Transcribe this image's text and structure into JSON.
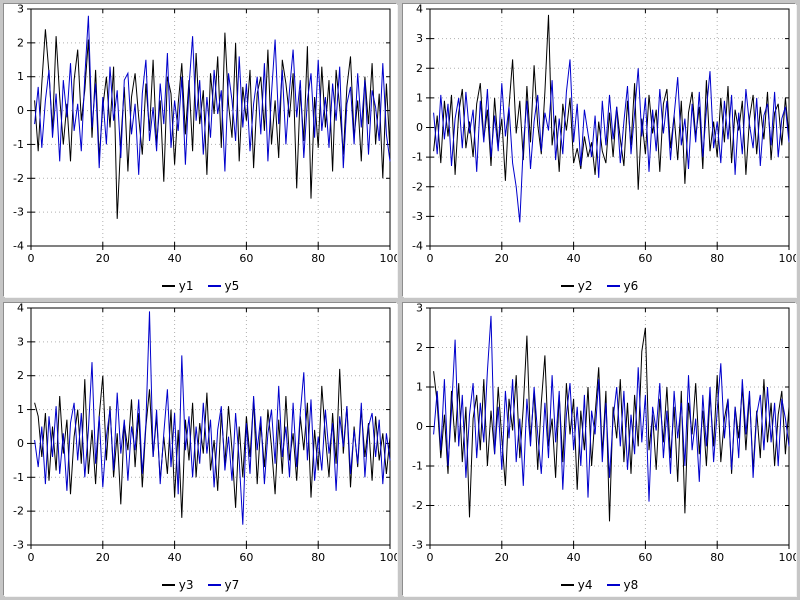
{
  "colors": {
    "series_black": "#000000",
    "series_blue": "#0000cc",
    "grid": "#b0b0b0",
    "frame": "#c6c6c6",
    "plot_bg": "#ffffff"
  },
  "chart_data": [
    {
      "type": "line",
      "title": "",
      "xlabel": "",
      "ylabel": "",
      "grid": true,
      "legend_position": "bottom",
      "xlim": [
        0,
        100
      ],
      "ylim": [
        -4,
        3
      ],
      "x_ticks": [
        0,
        20,
        40,
        60,
        80,
        100
      ],
      "y_ticks": [
        -4,
        -3,
        -2,
        -1,
        0,
        1,
        2,
        3
      ],
      "x_start": 1,
      "x_step": 1,
      "n_points": 100,
      "series": [
        {
          "name": "y1",
          "color": "#000000",
          "y": [
            0.3,
            -1.2,
            0.8,
            2.4,
            1.1,
            -0.6,
            2.2,
            0.4,
            -1.0,
            0.2,
            -1.5,
            0.9,
            1.8,
            -0.3,
            0.6,
            2.1,
            -0.8,
            1.2,
            -1.4,
            0.1,
            1.0,
            -0.5,
            1.3,
            -3.2,
            -0.9,
            0.7,
            -1.8,
            0.4,
            1.1,
            -0.2,
            -1.3,
            0.8,
            -0.6,
            1.5,
            -1.0,
            0.3,
            -2.1,
            1.0,
            0.5,
            -1.6,
            0.2,
            1.4,
            -0.7,
            0.9,
            -1.2,
            1.7,
            -0.4,
            0.6,
            -1.9,
            1.1,
            -0.1,
            1.6,
            -1.1,
            2.3,
            0.2,
            -0.8,
            2.0,
            -1.5,
            0.7,
            -0.3,
            1.2,
            -1.7,
            0.5,
            1.0,
            -0.6,
            1.8,
            -1.0,
            0.3,
            -1.4,
            1.5,
            0.8,
            -0.2,
            1.1,
            -2.3,
            0.6,
            -0.9,
            1.9,
            -2.6,
            0.4,
            -1.1,
            1.3,
            -0.5,
            0.9,
            -1.8,
            1.2,
            0.1,
            -1.3,
            0.7,
            1.6,
            -0.8,
            0.3,
            -1.5,
            1.0,
            -0.4,
            1.4,
            -1.0,
            0.5,
            -2.0,
            0.8,
            -1.2
          ]
        },
        {
          "name": "y5",
          "color": "#0000cc",
          "y": [
            -0.4,
            0.7,
            -1.1,
            0.3,
            1.2,
            -0.8,
            0.5,
            -1.5,
            0.9,
            -0.2,
            1.4,
            -0.6,
            0.2,
            -1.2,
            1.0,
            2.8,
            -0.5,
            0.8,
            -1.7,
            0.4,
            -1.0,
            1.3,
            -0.3,
            0.6,
            -1.4,
            0.9,
            1.1,
            -0.7,
            0.2,
            -1.9,
            0.5,
            1.5,
            -0.9,
            0.1,
            -1.2,
            0.8,
            -0.4,
            1.7,
            -1.1,
            0.3,
            -0.6,
            1.0,
            -1.6,
            0.7,
            2.2,
            -0.3,
            0.9,
            -1.3,
            0.4,
            -0.8,
            1.2,
            -0.1,
            0.6,
            -1.8,
            1.1,
            0.3,
            -0.9,
            1.6,
            -0.5,
            0.8,
            -1.2,
            0.2,
            1.0,
            -0.7,
            1.4,
            -1.5,
            0.5,
            2.1,
            -0.4,
            1.2,
            -1.0,
            0.6,
            1.8,
            -0.2,
            0.9,
            -1.4,
            0.3,
            1.1,
            -0.8,
            1.5,
            -0.6,
            0.4,
            -1.1,
            0.8,
            -0.3,
            1.3,
            -1.7,
            0.2,
            0.7,
            -1.0,
            1.1,
            -0.5,
            0.9,
            -1.3,
            0.6,
            0.1,
            -0.9,
            1.4,
            -0.7,
            -1.5
          ]
        }
      ]
    },
    {
      "type": "line",
      "title": "",
      "xlabel": "",
      "ylabel": "",
      "grid": true,
      "legend_position": "bottom",
      "xlim": [
        0,
        100
      ],
      "ylim": [
        -4,
        4
      ],
      "x_ticks": [
        0,
        20,
        40,
        60,
        80,
        100
      ],
      "y_ticks": [
        -4,
        -3,
        -2,
        -1,
        0,
        1,
        2,
        3,
        4
      ],
      "x_start": 1,
      "x_step": 1,
      "n_points": 100,
      "series": [
        {
          "name": "y2",
          "color": "#000000",
          "y": [
            -0.8,
            0.4,
            -1.2,
            0.9,
            -0.3,
            1.1,
            -1.6,
            0.5,
            1.3,
            -0.7,
            0.2,
            -1.0,
            0.8,
            1.5,
            -0.4,
            0.6,
            -1.3,
            1.0,
            -0.6,
            0.3,
            -1.8,
            0.7,
            2.3,
            -0.2,
            0.9,
            -1.1,
            1.4,
            -0.5,
            2.1,
            0.1,
            -0.9,
            1.2,
            3.8,
            -0.6,
            0.4,
            -1.5,
            0.8,
            -0.1,
            1.0,
            -1.2,
            -0.7,
            -1.4,
            -0.3,
            -1.0,
            -0.5,
            -1.6,
            0.2,
            -0.8,
            -1.2,
            0.5,
            -1.0,
            0.7,
            -0.4,
            -1.3,
            0.9,
            -0.6,
            1.5,
            -2.1,
            0.3,
            -0.9,
            1.1,
            -0.2,
            0.6,
            -1.5,
            0.8,
            1.3,
            -0.7,
            0.4,
            -1.1,
            0.9,
            -1.9,
            0.5,
            1.2,
            -0.3,
            0.7,
            -1.4,
            1.6,
            -0.8,
            0.2,
            -1.0,
            1.0,
            -0.5,
            1.4,
            -1.2,
            0.6,
            -0.1,
            0.9,
            -1.6,
            0.3,
            1.1,
            -0.9,
            0.7,
            -0.4,
            1.2,
            -1.1,
            0.5,
            0.8,
            -0.6,
            1.0,
            -0.3
          ]
        },
        {
          "name": "y6",
          "color": "#0000cc",
          "y": [
            0.5,
            -0.9,
            1.1,
            -0.4,
            0.8,
            -1.3,
            0.3,
            1.0,
            -0.7,
            1.2,
            -0.2,
            0.6,
            -1.5,
            0.9,
            -0.5,
            1.3,
            -1.0,
            0.4,
            -0.8,
            1.5,
            -0.3,
            0.7,
            -1.2,
            -2.0,
            -3.2,
            -0.6,
            0.9,
            -1.4,
            0.2,
            1.1,
            -0.8,
            0.5,
            -0.1,
            1.6,
            -1.1,
            0.3,
            -0.9,
            1.2,
            2.3,
            -0.5,
            0.8,
            -1.3,
            0.6,
            -0.2,
            -1.0,
            0.4,
            -1.7,
            0.9,
            -0.6,
            1.1,
            -0.4,
            0.7,
            -1.2,
            0.2,
            1.4,
            -0.9,
            0.5,
            2.0,
            -0.3,
            1.0,
            -1.5,
            0.6,
            -0.8,
            1.3,
            -0.2,
            0.9,
            -1.1,
            0.4,
            1.7,
            -0.6,
            0.3,
            -1.4,
            0.8,
            -0.5,
            1.2,
            -1.0,
            0.6,
            1.9,
            -0.7,
            0.2,
            -1.2,
            0.9,
            -0.4,
            1.1,
            -1.6,
            0.5,
            -0.9,
            1.3,
            0.1,
            -0.7,
            1.0,
            -1.3,
            0.4,
            0.8,
            -0.6,
            1.2,
            -1.0,
            0.3,
            0.7,
            -0.5
          ]
        }
      ]
    },
    {
      "type": "line",
      "title": "",
      "xlabel": "",
      "ylabel": "",
      "grid": true,
      "legend_position": "bottom",
      "xlim": [
        0,
        100
      ],
      "ylim": [
        -3,
        4
      ],
      "x_ticks": [
        0,
        20,
        40,
        60,
        80,
        100
      ],
      "y_ticks": [
        -3,
        -2,
        -1,
        0,
        1,
        2,
        3,
        4
      ],
      "x_start": 1,
      "x_step": 1,
      "n_points": 100,
      "series": [
        {
          "name": "y3",
          "color": "#000000",
          "y": [
            1.2,
            0.8,
            -0.4,
            0.9,
            -1.1,
            0.5,
            -0.8,
            1.4,
            -0.3,
            0.7,
            -1.5,
            0.2,
            1.0,
            -0.6,
            1.9,
            -0.9,
            0.4,
            -1.2,
            0.8,
            2.0,
            -0.5,
            1.1,
            -1.0,
            0.3,
            -1.8,
            0.6,
            -0.2,
            1.3,
            -0.7,
            0.9,
            -1.3,
            0.5,
            1.6,
            -0.4,
            0.8,
            -1.1,
            0.2,
            -0.9,
            1.0,
            -1.6,
            0.4,
            -2.2,
            0.7,
            -0.5,
            1.2,
            -1.0,
            0.6,
            -0.3,
            1.5,
            -0.8,
            0.1,
            -1.4,
            0.9,
            -0.6,
            1.1,
            -0.2,
            -1.9,
            0.5,
            -1.0,
            0.8,
            -0.4,
            1.3,
            -1.2,
            0.6,
            -0.7,
            1.0,
            -0.1,
            -1.5,
            0.7,
            -0.9,
            1.4,
            -0.5,
            0.3,
            -1.1,
            0.8,
            -0.2,
            1.2,
            -1.6,
            0.4,
            -0.8,
            1.7,
            0.2,
            -1.0,
            0.9,
            -0.6,
            2.2,
            -0.3,
            1.1,
            -1.3,
            0.5,
            -0.7,
            1.0,
            -0.4,
            0.6,
            -1.1,
            0.8,
            -0.5,
            0.3,
            -0.9,
            0.2
          ]
        },
        {
          "name": "y7",
          "color": "#0000cc",
          "y": [
            0.1,
            -0.7,
            0.5,
            -1.2,
            0.8,
            -0.4,
            1.1,
            -0.9,
            0.3,
            -1.4,
            0.6,
            1.2,
            -0.5,
            0.9,
            -1.0,
            0.4,
            2.4,
            -0.6,
            0.8,
            -1.3,
            0.2,
            1.0,
            -0.8,
            1.5,
            -0.3,
            0.7,
            -1.1,
            0.5,
            -0.2,
            1.3,
            -0.9,
            0.6,
            3.9,
            -0.4,
            1.0,
            -1.2,
            0.3,
            1.6,
            -0.7,
            0.9,
            -1.5,
            2.6,
            -0.2,
            0.8,
            -1.0,
            0.5,
            -0.6,
            1.2,
            -0.3,
            0.7,
            -1.3,
            0.4,
            1.1,
            -0.8,
            0.2,
            -1.1,
            0.9,
            -0.5,
            -2.4,
            0.6,
            -0.9,
            1.4,
            -0.2,
            0.8,
            -1.2,
            0.3,
            1.0,
            -0.6,
            1.7,
            -0.4,
            0.5,
            -1.0,
            1.2,
            -0.7,
            0.9,
            2.1,
            -0.5,
            1.3,
            -1.1,
            0.2,
            -0.8,
            1.0,
            -0.3,
            0.6,
            -1.4,
            0.8,
            -0.1,
            1.1,
            -0.9,
            0.4,
            -0.6,
            1.2,
            -1.0,
            0.5,
            0.9,
            -0.4,
            0.7,
            -1.2,
            0.3,
            -0.5
          ]
        }
      ]
    },
    {
      "type": "line",
      "title": "",
      "xlabel": "",
      "ylabel": "",
      "grid": true,
      "legend_position": "bottom",
      "xlim": [
        0,
        100
      ],
      "ylim": [
        -3,
        3
      ],
      "x_ticks": [
        0,
        20,
        40,
        60,
        80,
        100
      ],
      "y_ticks": [
        -3,
        -2,
        -1,
        0,
        1,
        2,
        3
      ],
      "x_start": 1,
      "x_step": 1,
      "n_points": 100,
      "series": [
        {
          "name": "y4",
          "color": "#000000",
          "y": [
            1.4,
            0.6,
            -0.8,
            0.3,
            -1.2,
            0.9,
            -0.4,
            1.1,
            -0.9,
            0.5,
            -2.3,
            0.2,
            0.8,
            -0.6,
            1.2,
            -1.0,
            0.4,
            -0.7,
            1.0,
            -0.3,
            -1.5,
            0.7,
            -0.1,
            1.3,
            -0.8,
            0.5,
            2.3,
            -0.4,
            0.9,
            -1.1,
            0.6,
            1.8,
            -0.5,
            0.2,
            -1.3,
            0.8,
            -0.9,
            1.1,
            -0.2,
            0.7,
            -1.6,
            0.4,
            -0.6,
            1.0,
            -1.0,
            0.3,
            1.5,
            -0.7,
            0.9,
            -2.4,
            0.5,
            -0.3,
            1.2,
            -0.9,
            0.6,
            -1.2,
            0.8,
            -0.5,
            1.9,
            2.5,
            -0.6,
            0.3,
            -1.1,
            0.7,
            -0.4,
            1.0,
            -0.8,
            0.5,
            -1.4,
            0.9,
            -2.2,
            0.6,
            -0.2,
            1.1,
            -0.7,
            0.4,
            -1.0,
            0.8,
            -0.5,
            1.3,
            -0.9,
            0.2,
            0.7,
            -1.2,
            0.5,
            -0.3,
            1.0,
            -0.6,
            0.8,
            -1.1,
            0.4,
            -0.8,
            1.2,
            -0.4,
            0.6,
            -1.0,
            0.3,
            0.9,
            -0.7,
            0.5
          ]
        },
        {
          "name": "y8",
          "color": "#0000cc",
          "y": [
            -0.2,
            0.9,
            -0.6,
            1.2,
            -1.0,
            0.4,
            2.2,
            -0.5,
            0.8,
            -1.3,
            0.3,
            1.1,
            -0.8,
            0.6,
            -0.4,
            1.4,
            2.8,
            -0.7,
            0.5,
            -1.1,
            0.9,
            -0.3,
            1.2,
            -0.9,
            0.2,
            -1.5,
            0.7,
            -0.5,
            1.0,
            -0.2,
            -1.2,
            0.6,
            -0.8,
            1.3,
            -0.4,
            0.9,
            -1.6,
            0.3,
            1.1,
            -0.6,
            0.5,
            -1.0,
            0.8,
            -1.8,
            0.4,
            -0.2,
            1.2,
            -0.9,
            0.6,
            -1.3,
            0.2,
            1.0,
            -0.5,
            0.9,
            -1.1,
            0.3,
            -0.7,
            1.5,
            -0.4,
            0.8,
            -1.9,
            0.5,
            -0.1,
            1.1,
            -0.8,
            0.4,
            -1.2,
            0.9,
            -0.3,
            0.6,
            -1.0,
            1.3,
            -0.6,
            0.2,
            -1.4,
            0.8,
            -0.5,
            1.0,
            -0.9,
            0.4,
            1.6,
            -0.3,
            0.7,
            -1.1,
            0.5,
            -0.8,
            1.2,
            -0.2,
            0.9,
            -1.3,
            0.3,
            0.8,
            -0.6,
            1.0,
            -0.4,
            0.6,
            -1.0,
            0.7,
            0.2,
            -0.5
          ]
        }
      ]
    }
  ]
}
